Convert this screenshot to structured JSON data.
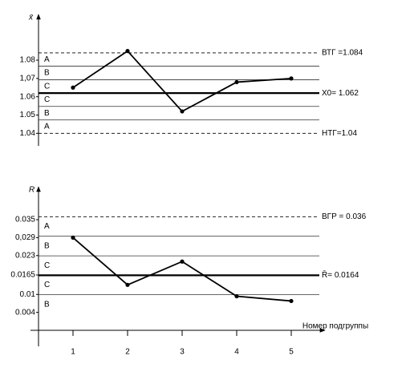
{
  "chart_data": [
    {
      "type": "line",
      "y_label": "x̄",
      "categories": [
        null,
        null,
        null,
        null,
        null
      ],
      "values": [
        1.065,
        1.085,
        1.052,
        1.068,
        1.07
      ],
      "color": "#000000",
      "ylim": [
        1.034,
        1.105
      ],
      "yticks": [
        1.08,
        {
          "value": 1.07,
          "label": "1,07"
        },
        1.06,
        1.05,
        1.04
      ],
      "limits": [
        {
          "value": 1.084,
          "label": "ВТГ =1.084",
          "style": "dashed"
        },
        {
          "value": 1.062,
          "label": "Х0= 1.062",
          "style": "bold"
        },
        {
          "value": 1.04,
          "label": "НТГ=1.04",
          "style": "dashed"
        }
      ],
      "zones": [
        1.0767,
        1.0693,
        1.0547,
        1.0473
      ],
      "zone_labels": [
        "A",
        "B",
        "C",
        "C",
        "B",
        "A"
      ]
    },
    {
      "type": "line",
      "y_label": "R",
      "x_label": "Номер подгруппы",
      "categories": [
        "1",
        "2",
        "3",
        "4",
        "5"
      ],
      "values": [
        0.029,
        0.0132,
        0.021,
        0.0094,
        0.0078
      ],
      "color": "#000000",
      "ylim": [
        -0.002,
        0.046
      ],
      "yticks": [
        0.035,
        {
          "value": 0.029,
          "label": "0,029"
        },
        0.023,
        0.0165,
        0.01,
        0.004
      ],
      "limits": [
        {
          "value": 0.036,
          "label": "ВГР = 0.036",
          "style": "dashed"
        },
        {
          "value": 0.0164,
          "label": "R̄= 0.0164",
          "style": "bold"
        }
      ],
      "zones": [
        0.0295,
        0.0229,
        0.0099
      ],
      "zone_labels": [
        "A",
        "B",
        "C",
        "C",
        "B"
      ]
    }
  ]
}
